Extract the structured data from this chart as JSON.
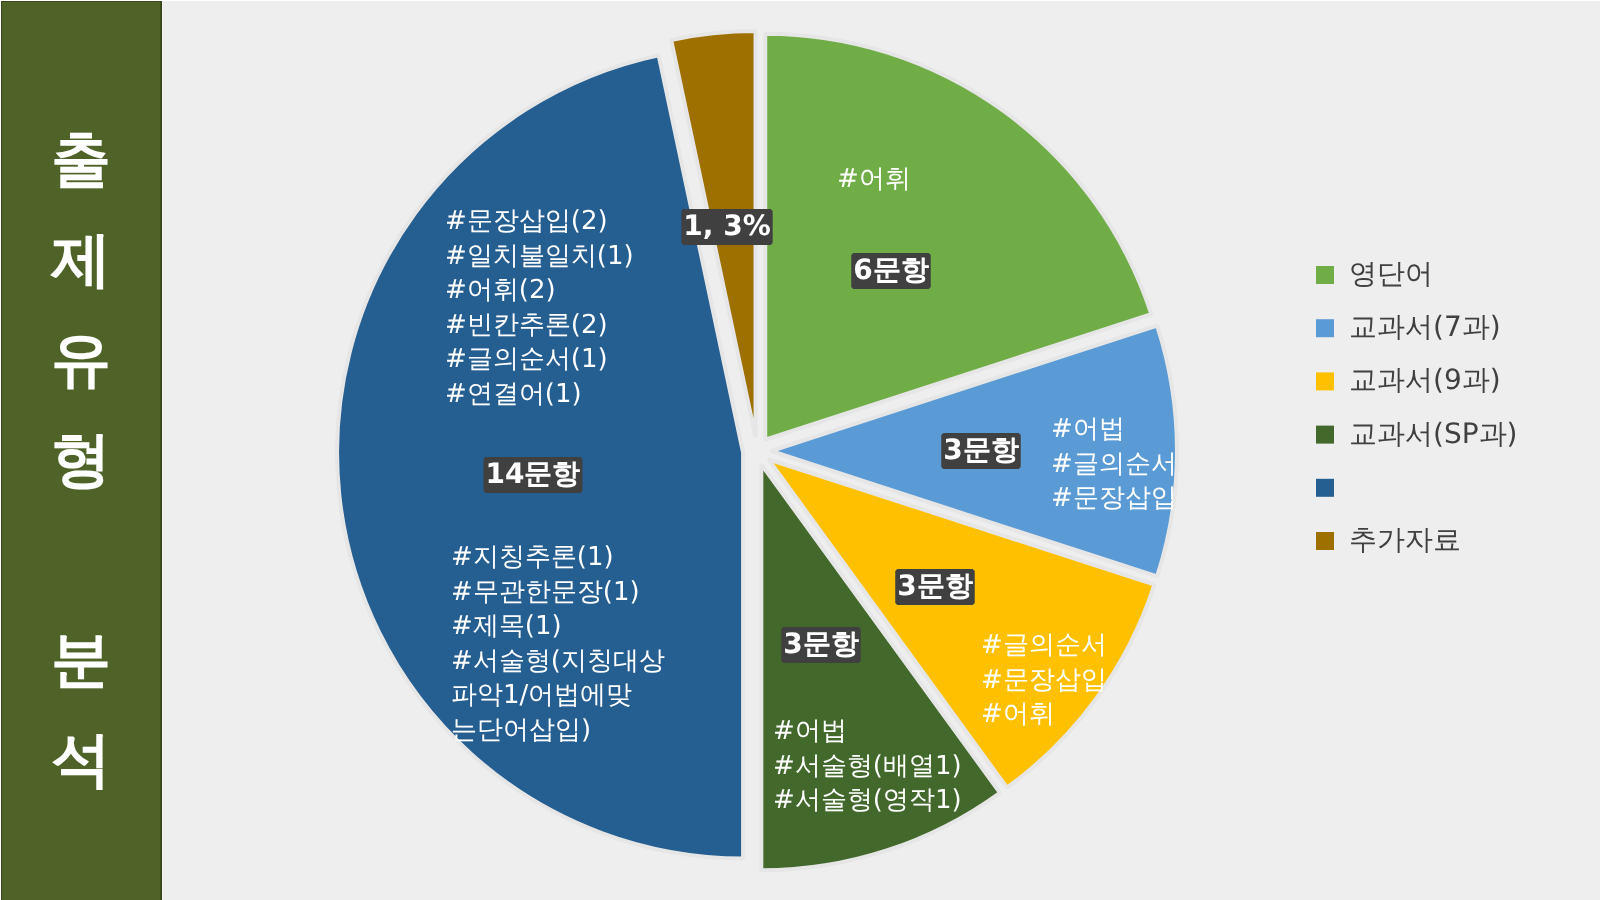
{
  "chart_data": {
    "type": "pie",
    "title": "출제유형 분석",
    "categories": [
      "영단어",
      "교과서(7과)",
      "교과서(9과)",
      "교과서(SP과)",
      null,
      "추가자료"
    ],
    "values": [
      6,
      3,
      3,
      3,
      14,
      1
    ],
    "colors": [
      "#70ad47",
      "#5b9bd5",
      "#ffc000",
      "#43682b",
      "#255e91",
      "#9e7000"
    ],
    "value_labels": [
      "6문항",
      "3문항",
      "3문항",
      "3문항",
      "14문항",
      "1, 3%"
    ],
    "annotations": [
      "#어휘",
      "#어법\n#글의순서\n#문장삽입",
      "#글의순서\n#문장삽입\n#어휘",
      "#어법\n#서술형(배열1)\n#서술형(영작1)",
      "#문장삽입(2)\n#일치불일치(1)\n#어휘(2)\n#빈칸추론(2)\n#글의순서(1)\n#연결어(1)",
      "#지칭추론(1)\n#무관한문장(1)\n#제목(1)\n#서술형(지칭대상\n파악1/어법에맞\n는단어삽입)"
    ],
    "legend": "right"
  }
}
